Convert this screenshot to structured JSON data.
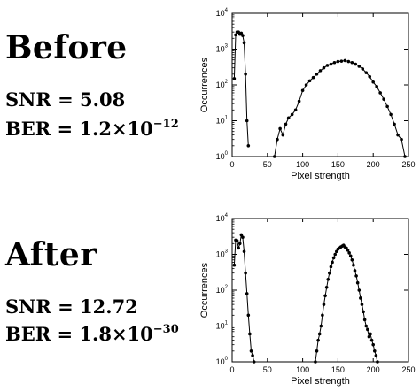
{
  "panels": [
    {
      "heading": "Before",
      "snr_label": "SNR = 5.08",
      "ber_prefix": "BER = 1.2×10",
      "ber_exponent": "−12"
    },
    {
      "heading": "After",
      "snr_label": "SNR = 12.72",
      "ber_prefix": "BER = 1.8×10",
      "ber_exponent": "−30"
    }
  ],
  "chart_data": [
    {
      "type": "scatter",
      "xlabel": "Pixel strength",
      "ylabel": "Occurrences",
      "xlim": [
        0,
        250
      ],
      "ylim": [
        1,
        10000
      ],
      "yscale": "log",
      "xticks": [
        "0",
        "50",
        "100",
        "150",
        "200",
        "250"
      ],
      "yticks": [
        {
          "base": "10",
          "exp": "0"
        },
        {
          "base": "10",
          "exp": "1"
        },
        {
          "base": "10",
          "exp": "2"
        },
        {
          "base": "10",
          "exp": "3"
        },
        {
          "base": "10",
          "exp": "4"
        }
      ],
      "series": [
        {
          "x": [
            3,
            5,
            7,
            9,
            11,
            13,
            15,
            17,
            19,
            21,
            23
          ],
          "y": [
            150,
            2500,
            3000,
            3000,
            2600,
            2800,
            2400,
            1500,
            200,
            10,
            2
          ]
        },
        {
          "x": [
            60,
            64,
            68,
            72,
            76,
            80,
            85,
            90,
            95,
            100,
            105,
            110,
            115,
            120,
            125,
            130,
            135,
            140,
            145,
            150,
            155,
            160,
            165,
            170,
            175,
            180,
            185,
            190,
            195,
            200,
            205,
            210,
            215,
            220,
            225,
            230,
            235,
            240,
            245
          ],
          "y": [
            1,
            3,
            6,
            4,
            8,
            12,
            15,
            20,
            35,
            70,
            100,
            130,
            160,
            200,
            250,
            300,
            350,
            380,
            420,
            450,
            460,
            480,
            450,
            420,
            380,
            330,
            280,
            220,
            170,
            120,
            90,
            60,
            40,
            25,
            15,
            8,
            4,
            3,
            1
          ]
        }
      ]
    },
    {
      "type": "scatter",
      "xlabel": "Pixel strength",
      "ylabel": "Occurrences",
      "xlim": [
        0,
        250
      ],
      "ylim": [
        1,
        10000
      ],
      "yscale": "log",
      "xticks": [
        "0",
        "50",
        "100",
        "150",
        "200",
        "250"
      ],
      "yticks": [
        {
          "base": "10",
          "exp": "0"
        },
        {
          "base": "10",
          "exp": "1"
        },
        {
          "base": "10",
          "exp": "2"
        },
        {
          "base": "10",
          "exp": "3"
        },
        {
          "base": "10",
          "exp": "4"
        }
      ],
      "series": [
        {
          "x": [
            3,
            5,
            7,
            9,
            11,
            13,
            15,
            17,
            19,
            21,
            23,
            25,
            27,
            29,
            31
          ],
          "y": [
            500,
            2500,
            2400,
            1500,
            2000,
            3500,
            3000,
            1200,
            300,
            80,
            20,
            6,
            2,
            1.5,
            1
          ]
        },
        {
          "x": [
            118,
            120,
            122,
            124,
            126,
            128,
            130,
            132,
            134,
            136,
            138,
            140,
            142,
            144,
            146,
            148,
            150,
            152,
            154,
            156,
            158,
            160,
            162,
            164,
            166,
            168,
            170,
            172,
            174,
            176,
            178,
            180,
            182,
            184,
            186,
            188,
            190,
            192,
            194,
            196,
            198,
            200,
            202,
            204,
            206
          ],
          "y": [
            1,
            2,
            4,
            6,
            10,
            20,
            40,
            70,
            120,
            200,
            300,
            450,
            600,
            800,
            1000,
            1200,
            1400,
            1500,
            1600,
            1700,
            1800,
            1600,
            1500,
            1300,
            1100,
            900,
            700,
            500,
            350,
            250,
            160,
            100,
            60,
            40,
            25,
            15,
            10,
            8,
            5,
            6,
            4,
            3,
            2,
            1.5,
            1
          ]
        }
      ]
    }
  ]
}
